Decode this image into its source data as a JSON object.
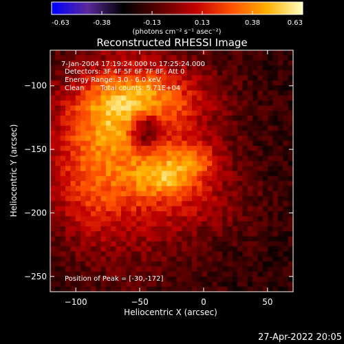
{
  "colorbar": {
    "ticks": [
      "-0.63",
      "-0.38",
      "-0.13",
      "0.13",
      "0.38",
      "0.63"
    ],
    "units": "(photons cm⁻² s⁻¹ asec⁻²)",
    "colormap": [
      "#0000ff",
      "#5a2a9a",
      "#000000",
      "#5a0000",
      "#c00000",
      "#ff5000",
      "#ffb000",
      "#ffffc0"
    ]
  },
  "chart_data": {
    "type": "heatmap",
    "title": "Reconstructed RHESSI Image",
    "xlabel": "Heliocentric X (arcsec)",
    "ylabel": "Heliocentric Y (arcsec)",
    "xlim": [
      -120,
      70
    ],
    "ylim": [
      -262,
      -72
    ],
    "x_ticks": [
      -100,
      -50,
      0,
      50
    ],
    "y_ticks": [
      -100,
      -150,
      -200,
      -250
    ],
    "color_range": [
      -0.63,
      0.63
    ],
    "peak": [
      -30,
      -172
    ],
    "annotations": {
      "time": "7-Jan-2004 17:19:24.000 to 17:25:24.000",
      "detectors": "Detectors: 3F 4F 5F 6F 7F 8F, Att 0",
      "energy": "Energy Range: 3.0 - 6.0 keV",
      "clean_label": "Clean",
      "total_counts": "Total counts: 5.71E+04",
      "peak_text": "Position of Peak = [-30,-172]"
    }
  },
  "footer": {
    "timestamp": "27-Apr-2022 20:05"
  }
}
